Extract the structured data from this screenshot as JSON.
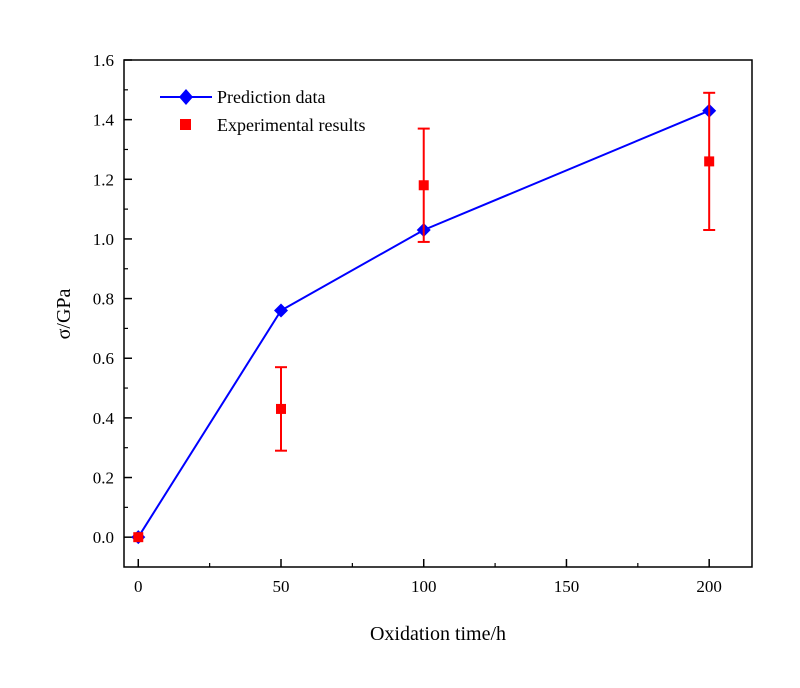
{
  "chart_data": {
    "type": "line",
    "xlabel": "Oxidation time/h",
    "ylabel": "σ/GPa",
    "xlim": [
      -5,
      215
    ],
    "ylim": [
      -0.1,
      1.6
    ],
    "xticks": [
      0,
      50,
      100,
      150,
      200
    ],
    "xtick_labels": [
      "0",
      "50",
      "100",
      "150",
      "200"
    ],
    "yticks": [
      0.0,
      0.2,
      0.4,
      0.6,
      0.8,
      1.0,
      1.2,
      1.4,
      1.6
    ],
    "ytick_labels": [
      "0.0",
      "0.2",
      "0.4",
      "0.6",
      "0.8",
      "1.0",
      "1.2",
      "1.4",
      "1.6"
    ],
    "grid": false,
    "legend_position": "top-left",
    "series": [
      {
        "name": "Prediction data",
        "kind": "line-marker",
        "marker": "diamond",
        "color": "#0000ff",
        "x": [
          0,
          50,
          100,
          200
        ],
        "y": [
          0.0,
          0.76,
          1.03,
          1.43
        ]
      },
      {
        "name": "Experimental results",
        "kind": "scatter-errorbar",
        "marker": "square",
        "color": "#ff0000",
        "x": [
          0,
          50,
          100,
          200
        ],
        "y": [
          0.0,
          0.43,
          1.18,
          1.26
        ],
        "err_low": [
          0.0,
          0.14,
          0.19,
          0.23
        ],
        "err_high": [
          0.0,
          0.14,
          0.19,
          0.23
        ]
      }
    ]
  }
}
